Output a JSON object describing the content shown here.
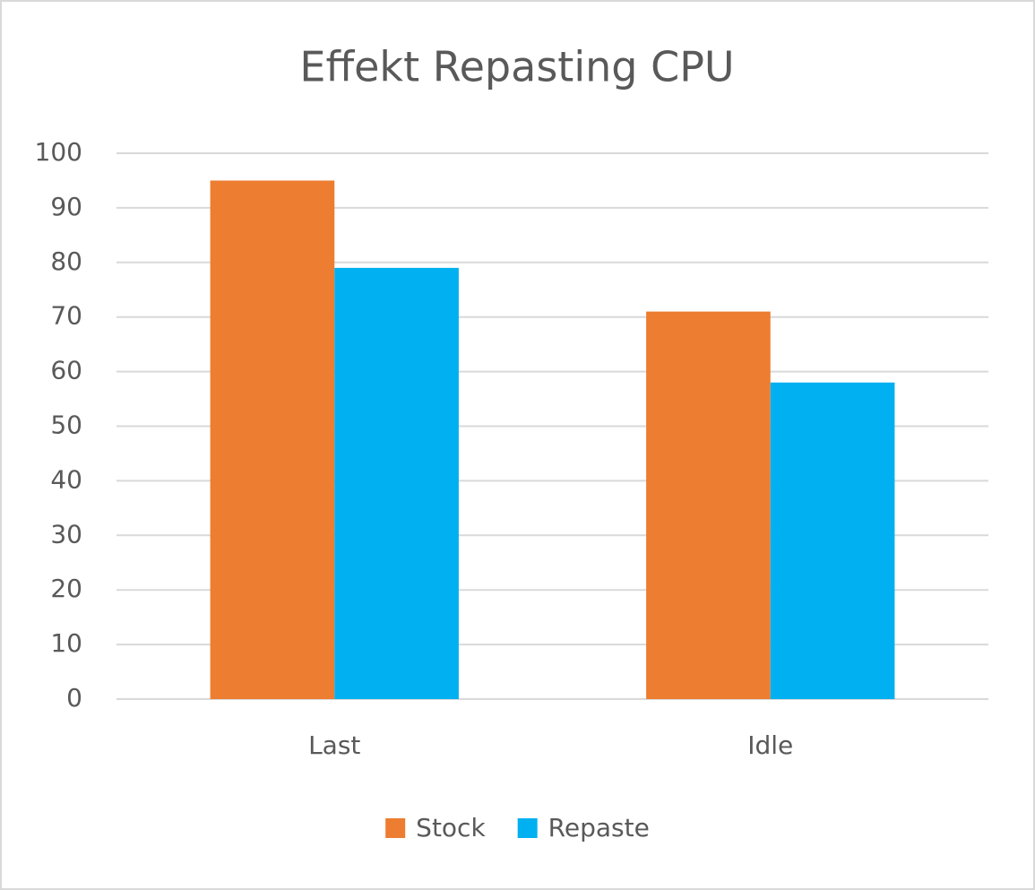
{
  "chart_data": {
    "type": "bar",
    "title": "Effekt Repasting CPU",
    "categories": [
      "Last",
      "Idle"
    ],
    "series": [
      {
        "name": "Stock",
        "color": "#ed7d31",
        "values": [
          95,
          71
        ]
      },
      {
        "name": "Repaste",
        "color": "#00b0f0",
        "values": [
          79,
          58
        ]
      }
    ],
    "ylim": [
      0,
      100
    ],
    "yticks": [
      0,
      10,
      20,
      30,
      40,
      50,
      60,
      70,
      80,
      90,
      100
    ],
    "grid": true,
    "legend": "bottom"
  }
}
